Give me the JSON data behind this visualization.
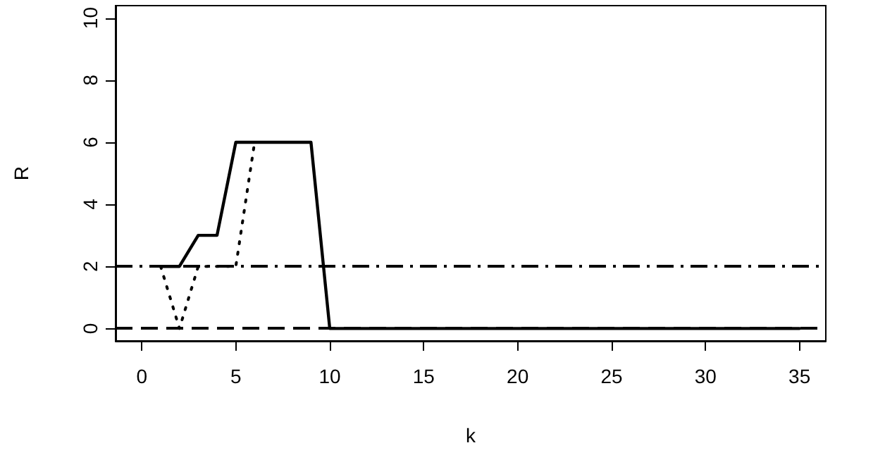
{
  "chart_data": {
    "type": "line",
    "xlabel": "k",
    "ylabel": "R",
    "xlim": [
      -1.4,
      36.4
    ],
    "ylim": [
      -0.4,
      10.4
    ],
    "xticks": [
      0,
      5,
      10,
      15,
      20,
      25,
      30,
      35
    ],
    "yticks": [
      0,
      2,
      4,
      6,
      8,
      10
    ],
    "grid": false,
    "marker": "none",
    "series": [
      {
        "color": "#000000",
        "line_style": "solid",
        "x": [
          1,
          2,
          3,
          4,
          5,
          6,
          7,
          8,
          9,
          10,
          11,
          12,
          13,
          14,
          15,
          16,
          17,
          18,
          19,
          20,
          21,
          22,
          23,
          24,
          25,
          26,
          27,
          28,
          29,
          30,
          31,
          32,
          33,
          34,
          35
        ],
        "values": [
          2,
          2,
          3,
          3,
          6,
          6,
          6,
          6,
          6,
          0,
          0,
          0,
          0,
          0,
          0,
          0,
          0,
          0,
          0,
          0,
          0,
          0,
          0,
          0,
          0,
          0,
          0,
          0,
          0,
          0,
          0,
          0,
          0,
          0,
          0
        ]
      },
      {
        "color": "#000000",
        "line_style": "dotted",
        "x": [
          1,
          2,
          3,
          4,
          5,
          6
        ],
        "values": [
          2,
          0,
          2,
          2,
          2,
          6
        ]
      }
    ],
    "ref_lines": [
      {
        "axis": "y",
        "value": 0,
        "line_style": "dashed",
        "color": "#000000"
      },
      {
        "axis": "y",
        "value": 2,
        "line_style": "dashdot",
        "color": "#000000"
      }
    ]
  }
}
